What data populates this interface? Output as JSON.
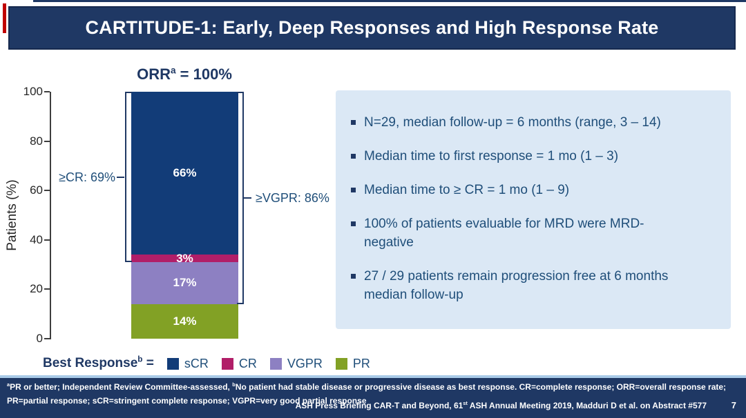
{
  "slide": {
    "title": "CARTITUDE-1: Early, Deep Responses and High Response Rate",
    "page_number": "7"
  },
  "chart_data": {
    "type": "bar",
    "stacked": true,
    "title": {
      "text": "ORR",
      "sup": "a",
      "suffix": " = 100%"
    },
    "ylabel": "Patients (%)",
    "ylim": [
      0,
      100
    ],
    "yticks": [
      0,
      20,
      40,
      60,
      80,
      100
    ],
    "categories": [
      "Best Response"
    ],
    "series": [
      {
        "name": "sCR",
        "value": 66,
        "label": "66%",
        "color": "#123c78"
      },
      {
        "name": "CR",
        "value": 3,
        "label": "3%",
        "color": "#b11e68"
      },
      {
        "name": "VGPR",
        "value": 17,
        "label": "17%",
        "color": "#8d80c2"
      },
      {
        "name": "PR",
        "value": 14,
        "label": "14%",
        "color": "#82a125"
      }
    ],
    "annotations": [
      {
        "id": "cr",
        "label": "≥CR: 69%",
        "from_pct": 31,
        "to_pct": 100,
        "side": "left"
      },
      {
        "id": "vgpr",
        "label": "≥VGPR: 86%",
        "from_pct": 14,
        "to_pct": 100,
        "side": "right"
      }
    ],
    "legend": {
      "prefix": "Best Response",
      "prefix_sup": "b",
      "equals": " = "
    },
    "legend_position": "bottom"
  },
  "panel": {
    "bullets": [
      "N=29, median follow-up = 6 months (range, 3 – 14)",
      "Median time to first response = 1 mo (1 – 3)",
      "Median time to ≥ CR = 1 mo (1 – 9)",
      "100% of patients evaluable for MRD were MRD-\nnegative",
      "27 / 29 patients remain progression free at 6 months\nmedian follow-up"
    ]
  },
  "footer": {
    "footnote_sup_a": "a",
    "footnote_part1": "PR or better; Independent Review Committee-assessed, ",
    "footnote_sup_b": "b",
    "footnote_part2": "No patient had stable disease or progressive disease as best response. CR=complete response; ORR=overall response rate;",
    "footnote_line2": "PR=partial response; sCR=stringent complete response; VGPR=very good partial response",
    "credit_part1": "ASH Press Briefing CAR-T and Beyond, 61",
    "credit_sup": "st",
    "credit_part2": " ASH Annual Meeting 2019, Madduri D et al. on Abstract #577"
  }
}
